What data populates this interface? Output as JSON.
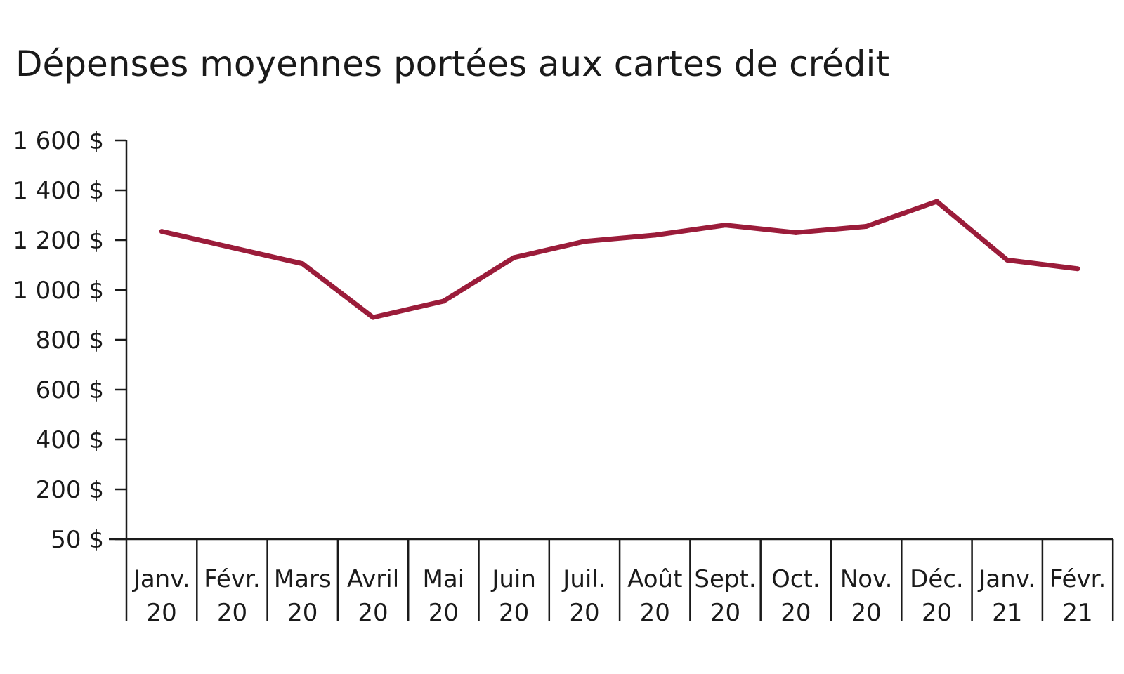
{
  "colors": {
    "series": "#9b1c3a",
    "axis": "#1a1a1a",
    "text": "#1a1a1a",
    "background": "#ffffff"
  },
  "chart_data": {
    "type": "line",
    "title": "Dépenses moyennes portées aux cartes de crédit",
    "xlabel": "",
    "ylabel": "",
    "grid": false,
    "legend": "none",
    "y_ticks": [
      1600,
      1400,
      1200,
      1000,
      800,
      600,
      400,
      200,
      50
    ],
    "y_tick_labels": [
      "1 600 $",
      "1 400 $",
      "1 200 $",
      "1 000 $",
      "800 $",
      "600 $",
      "400 $",
      "200 $",
      "50 $"
    ],
    "categories": [
      [
        "Janv.",
        "20"
      ],
      [
        "Févr.",
        "20"
      ],
      [
        "Mars",
        "20"
      ],
      [
        "Avril",
        "20"
      ],
      [
        "Mai",
        "20"
      ],
      [
        "Juin",
        "20"
      ],
      [
        "Juil.",
        "20"
      ],
      [
        "Août",
        "20"
      ],
      [
        "Sept.",
        "20"
      ],
      [
        "Oct.",
        "20"
      ],
      [
        "Nov.",
        "20"
      ],
      [
        "Déc.",
        "20"
      ],
      [
        "Janv.",
        "21"
      ],
      [
        "Févr.",
        "21"
      ]
    ],
    "series": [
      {
        "values": [
          1235,
          1170,
          1105,
          890,
          955,
          1130,
          1195,
          1220,
          1260,
          1230,
          1255,
          1355,
          1120,
          1085
        ]
      }
    ]
  }
}
